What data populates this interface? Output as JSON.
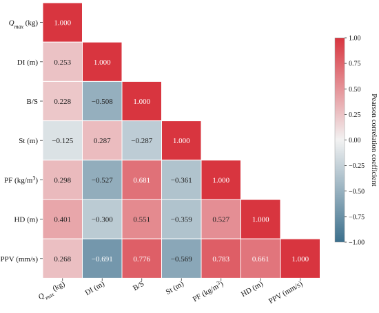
{
  "chart_data": {
    "type": "heatmap",
    "variables": [
      "Q_max (kg)",
      "DI (m)",
      "B/S",
      "St (m)",
      "PF (kg/m³)",
      "HD (m)",
      "PPV (mm/s)"
    ],
    "row_labels": [
      {
        "main": "Q",
        "sub": "max",
        "rest": " (kg)"
      },
      {
        "main": "DI (m)"
      },
      {
        "main": "B/S"
      },
      {
        "main": "St (m)"
      },
      {
        "main": "PF (kg/m",
        "sup": "3",
        "rest": ")"
      },
      {
        "main": "HD (m)"
      },
      {
        "main": "PPV (mm/s)"
      }
    ],
    "col_labels": [
      {
        "main": "Q",
        "sub": "max",
        "rest": " (kg)"
      },
      {
        "main": "DI (m)"
      },
      {
        "main": "B/S"
      },
      {
        "main": "St (m)"
      },
      {
        "main": "PF (kg/m",
        "sup": "3",
        "rest": ")"
      },
      {
        "main": "HD (m)"
      },
      {
        "main": "PPV (mm/s)"
      }
    ],
    "values": [
      [
        "1.000"
      ],
      [
        "0.253",
        "1.000"
      ],
      [
        "0.228",
        "−0.508",
        "1.000"
      ],
      [
        "−0.125",
        "0.287",
        "−0.287",
        "1.000"
      ],
      [
        "0.298",
        "−0.527",
        "0.681",
        "−0.361",
        "1.000"
      ],
      [
        "0.401",
        "−0.300",
        "0.551",
        "−0.359",
        "0.527",
        "1.000"
      ],
      [
        "0.268",
        "−0.691",
        "0.776",
        "−0.569",
        "0.783",
        "0.661",
        "1.000"
      ]
    ],
    "colorbar": {
      "label": "Pearson correlation coefficient",
      "range": [
        -1,
        1
      ],
      "ticks": [
        "1.00",
        "0.75",
        "0.50",
        "0.25",
        "0.00",
        "−0.25",
        "−0.50",
        "−0.75",
        "−1.00"
      ],
      "colors": {
        "negative": "#3b6f8c",
        "middle": "#f2f2f2",
        "positive": "#d8353f"
      }
    },
    "mask": "upper triangle hidden"
  }
}
